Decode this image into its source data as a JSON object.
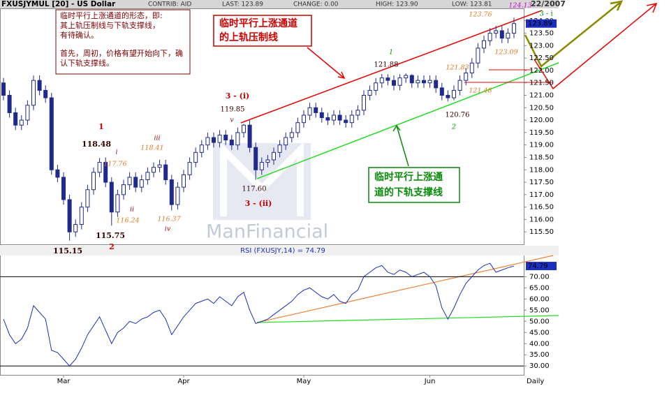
{
  "chart_data": [
    {
      "type": "candlestick",
      "title": "FXUSJYMUL [20] - US Dollar",
      "header": [
        "CONTRIB: AID",
        "LAST: 123.89",
        "CHANGE: 0.00",
        "HIGH: 123.90",
        "LOW: 123.81",
        "22/2007"
      ],
      "last_label": "123.89",
      "x_label": "Daily",
      "categories": [
        null,
        null,
        null,
        null,
        null,
        null,
        null,
        null,
        null,
        null,
        "Mar",
        null,
        null,
        null,
        null,
        null,
        null,
        null,
        null,
        null,
        null,
        null,
        null,
        null,
        null,
        null,
        null,
        null,
        null,
        null,
        "Apr",
        null,
        null,
        null,
        null,
        null,
        null,
        null,
        null,
        null,
        null,
        null,
        null,
        null,
        null,
        null,
        null,
        null,
        null,
        null,
        "May",
        null,
        null,
        null,
        null,
        null,
        null,
        null,
        null,
        null,
        null,
        null,
        null,
        null,
        null,
        null,
        null,
        null,
        null,
        null,
        null,
        "Jun",
        null,
        null,
        null,
        null,
        null,
        null,
        null,
        null,
        null,
        null,
        null,
        null,
        null,
        null
      ],
      "open": [
        121.5,
        121.0,
        120.3,
        119.8,
        120.0,
        120.6,
        121.6,
        121.2,
        120.9,
        118.0,
        117.7,
        116.8,
        115.5,
        115.8,
        116.5,
        117.2,
        117.9,
        118.3,
        117.5,
        116.3,
        117.0,
        117.4,
        117.7,
        117.3,
        117.6,
        117.9,
        118.1,
        118.2,
        117.6,
        116.6,
        117.3,
        117.8,
        118.3,
        118.7,
        119.0,
        119.3,
        119.1,
        119.4,
        119.2,
        119.0,
        119.5,
        119.8,
        118.9,
        118.0,
        118.3,
        118.4,
        118.7,
        119.0,
        119.3,
        119.5,
        119.9,
        120.2,
        120.5,
        120.3,
        120.1,
        120.0,
        120.2,
        120.0,
        119.9,
        120.2,
        120.4,
        121.0,
        121.2,
        121.5,
        121.7,
        121.6,
        121.4,
        121.7,
        121.8,
        121.5,
        121.6,
        121.5,
        121.6,
        121.3,
        121.0,
        120.9,
        121.2,
        121.6,
        121.9,
        122.3,
        122.9,
        123.2,
        123.5,
        123.6,
        123.3,
        123.5
      ],
      "high": [
        121.7,
        121.2,
        120.5,
        120.2,
        120.8,
        121.8,
        121.8,
        121.4,
        121.1,
        118.2,
        117.9,
        117.0,
        116.0,
        116.7,
        117.4,
        118.1,
        118.48,
        118.5,
        117.7,
        117.2,
        117.6,
        117.9,
        117.9,
        117.8,
        118.1,
        118.3,
        118.41,
        118.4,
        117.8,
        117.5,
        118.0,
        118.5,
        118.9,
        119.2,
        119.5,
        119.5,
        119.6,
        119.6,
        119.4,
        119.7,
        119.85,
        120.0,
        119.1,
        118.5,
        118.6,
        118.9,
        119.2,
        119.5,
        119.7,
        120.1,
        120.4,
        120.7,
        120.7,
        120.5,
        120.3,
        120.4,
        120.4,
        120.2,
        120.4,
        120.6,
        121.2,
        121.4,
        121.7,
        121.86,
        121.85,
        121.8,
        121.85,
        121.88,
        121.85,
        121.8,
        121.8,
        121.8,
        121.8,
        121.5,
        121.2,
        121.4,
        121.8,
        122.1,
        122.5,
        123.1,
        123.4,
        123.7,
        123.8,
        123.8,
        123.7,
        124.13
      ],
      "low": [
        120.8,
        120.1,
        119.6,
        119.6,
        119.8,
        120.4,
        121.0,
        120.7,
        117.8,
        117.5,
        116.6,
        115.15,
        115.3,
        115.6,
        116.3,
        117.0,
        117.7,
        117.3,
        115.75,
        116.1,
        116.8,
        117.2,
        117.1,
        117.1,
        117.4,
        117.7,
        117.9,
        117.4,
        116.37,
        116.4,
        117.1,
        117.6,
        118.1,
        118.5,
        118.8,
        118.9,
        118.9,
        119.0,
        118.8,
        118.8,
        119.3,
        118.7,
        117.6,
        117.8,
        118.1,
        118.2,
        118.5,
        118.8,
        119.1,
        119.3,
        119.7,
        120.0,
        120.1,
        119.9,
        119.8,
        119.8,
        119.8,
        119.7,
        119.7,
        120.0,
        120.2,
        120.8,
        121.0,
        121.3,
        121.4,
        121.2,
        121.2,
        121.5,
        121.3,
        121.3,
        121.3,
        121.3,
        121.1,
        120.8,
        120.76,
        120.8,
        121.0,
        121.4,
        121.7,
        122.1,
        122.7,
        123.0,
        123.3,
        123.1,
        123.1,
        123.3
      ],
      "close": [
        121.0,
        120.3,
        119.8,
        120.0,
        120.6,
        121.6,
        121.2,
        120.9,
        118.0,
        117.7,
        116.8,
        115.5,
        115.8,
        116.5,
        117.2,
        117.9,
        118.3,
        117.5,
        116.3,
        117.0,
        117.4,
        117.7,
        117.3,
        117.6,
        117.9,
        118.1,
        118.2,
        117.6,
        116.6,
        117.3,
        117.8,
        118.3,
        118.7,
        119.0,
        119.3,
        119.1,
        119.4,
        119.2,
        119.0,
        119.5,
        119.8,
        118.9,
        118.0,
        118.3,
        118.4,
        118.7,
        119.0,
        119.3,
        119.5,
        119.9,
        120.2,
        120.5,
        120.3,
        120.1,
        120.0,
        120.2,
        120.0,
        119.9,
        120.2,
        120.4,
        121.0,
        121.2,
        121.5,
        121.7,
        121.6,
        121.4,
        121.7,
        121.8,
        121.5,
        121.6,
        121.5,
        121.6,
        121.3,
        121.0,
        120.9,
        121.2,
        121.6,
        121.9,
        122.3,
        122.9,
        123.2,
        123.5,
        123.6,
        123.3,
        123.5,
        123.89
      ],
      "up_color": "#ffffff",
      "down_color": "#1f2a8c",
      "ylim": [
        115.0,
        124.5
      ],
      "yticks": [
        {
          "value": 115.5,
          "label": "115.50"
        },
        {
          "value": 116,
          "label": "116.00"
        },
        {
          "value": 116.5,
          "label": "116.50"
        },
        {
          "value": 117,
          "label": "117.00"
        },
        {
          "value": 117.5,
          "label": "117.50"
        },
        {
          "value": 118,
          "label": "118.00"
        },
        {
          "value": 118.5,
          "label": "118.50"
        },
        {
          "value": 119,
          "label": "119.00"
        },
        {
          "value": 119.5,
          "label": "119.50"
        },
        {
          "value": 120,
          "label": "120.00"
        },
        {
          "value": 120.5,
          "label": "120.50"
        },
        {
          "value": 121,
          "label": "121.00"
        },
        {
          "value": 121.5,
          "label": "121.50"
        },
        {
          "value": 122,
          "label": "122.00"
        },
        {
          "value": 122.5,
          "label": "122.50"
        },
        {
          "value": 123,
          "label": "123.00"
        },
        {
          "value": 123.5,
          "label": "123.50"
        },
        {
          "value": 124,
          "label": "124.00"
        }
      ],
      "annotations": [
        {
          "text": "1",
          "color": "#cc0000"
        },
        {
          "text": "118.48",
          "color": "#330000"
        },
        {
          "text": "i",
          "color": "#990000"
        },
        {
          "text": "117.76",
          "color": "#e07a20"
        },
        {
          "text": "iii",
          "color": "#990000"
        },
        {
          "text": "118.41",
          "color": "#e07a20"
        },
        {
          "text": "ii",
          "color": "#990000"
        },
        {
          "text": "116.24",
          "color": "#e07a20"
        },
        {
          "text": "iv",
          "color": "#990000"
        },
        {
          "text": "116.37",
          "color": "#e07a20"
        },
        {
          "text": "115.75",
          "color": "#330000"
        },
        {
          "text": "115.15",
          "color": "#330000"
        },
        {
          "text": "2",
          "color": "#cc0000"
        },
        {
          "text": "3 - (i)",
          "color": "#cc0000"
        },
        {
          "text": "119.85",
          "color": "#330000"
        },
        {
          "text": "v",
          "color": "#990000"
        },
        {
          "text": "3 - (ii)",
          "color": "#cc0000"
        },
        {
          "text": "117.60",
          "color": "#330000"
        },
        {
          "text": "1",
          "color": "#009900"
        },
        {
          "text": "121.88",
          "color": "#330000"
        },
        {
          "text": "2",
          "color": "#009900"
        },
        {
          "text": "120.76",
          "color": "#330000"
        },
        {
          "text": "121.83",
          "color": "#e07a20"
        },
        {
          "text": "121.48",
          "color": "#e07a20"
        },
        {
          "text": "123.76",
          "color": "#e07a20"
        },
        {
          "text": "123.09",
          "color": "#e07a20"
        },
        {
          "text": "3 - i",
          "color": "#009900"
        },
        {
          "text": "124.13",
          "color": "#cc00cc"
        }
      ],
      "notes": {
        "info": [
          "临时平行上涨通道的形态，即:",
          "其上轨压制线与下轨支撑线，",
          "有待确认。",
          "首先，周初，价格有望开始向下，确",
          "认下轨支撑线。"
        ],
        "upper": [
          "临时平行上涨通道",
          "的上轨压制线"
        ],
        "lower": [
          "临时平行上涨通",
          "道的下轨支撑线"
        ]
      },
      "watermark": "ManFinancial"
    },
    {
      "type": "line",
      "title": "RSI (FXUSJY,14) = 74.79",
      "last_label": "74.79",
      "series": [
        {
          "name": "RSI",
          "color": "#1a2fbf",
          "values": [
            51,
            44,
            40,
            42,
            47,
            57,
            54,
            51,
            37,
            36,
            33,
            30,
            33,
            38,
            44,
            48,
            52,
            46,
            40,
            45,
            47,
            50,
            49,
            51,
            52,
            54,
            55,
            51,
            44,
            48,
            52,
            55,
            58,
            59,
            60,
            58,
            61,
            59,
            57,
            61,
            63,
            55,
            49,
            50,
            51,
            53,
            55,
            57,
            59,
            62,
            64,
            65,
            63,
            61,
            60,
            62,
            59,
            58,
            62,
            64,
            70,
            72,
            74,
            75,
            72,
            71,
            73,
            72,
            70,
            71,
            72,
            70,
            66,
            56,
            51,
            56,
            62,
            67,
            70,
            73,
            75,
            76,
            72,
            73,
            74,
            74.79
          ]
        }
      ],
      "ylim": [
        26,
        79.5
      ],
      "yticks": [
        {
          "value": 30,
          "label": "30.00"
        },
        {
          "value": 35,
          "label": "35.00"
        },
        {
          "value": 40,
          "label": "40.00"
        },
        {
          "value": 45,
          "label": "45.00"
        },
        {
          "value": 50,
          "label": "50.00"
        },
        {
          "value": 55,
          "label": "55.00"
        },
        {
          "value": 60,
          "label": "60.00"
        },
        {
          "value": 65,
          "label": "65.00"
        },
        {
          "value": 70,
          "label": "70.00"
        }
      ],
      "reference_lines": [
        70,
        30
      ]
    }
  ]
}
